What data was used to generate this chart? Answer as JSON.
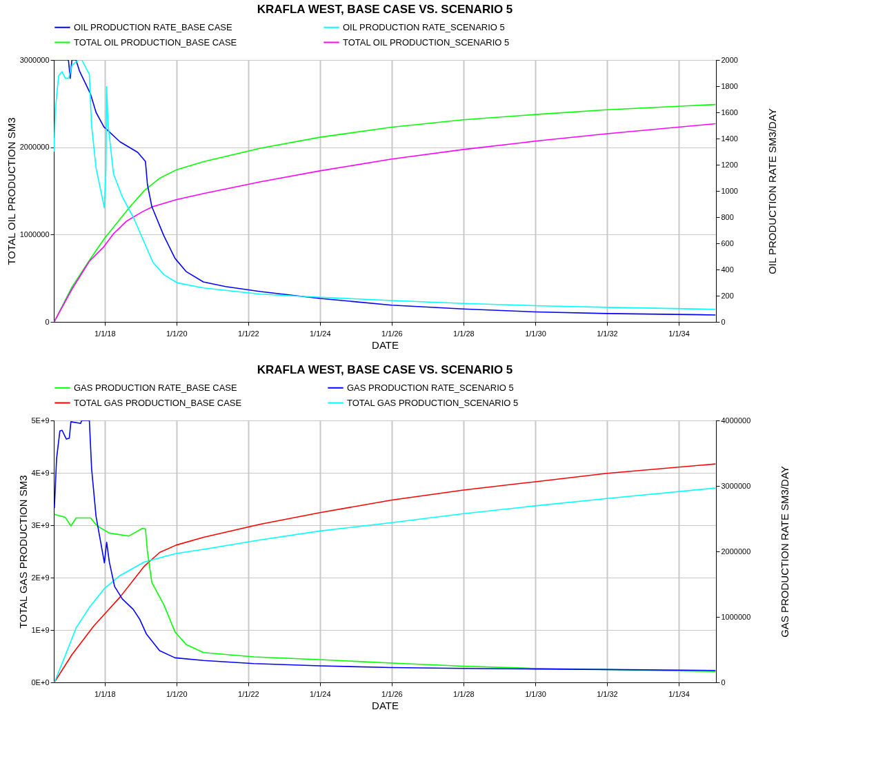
{
  "chart_data": [
    {
      "type": "line",
      "title": "KRAFLA WEST, BASE CASE VS. SCENARIO 5",
      "xlabel": "DATE",
      "ylabel": "TOTAL OIL PRODUCTION  SM3",
      "y2label": "OIL PRODUCTION RATE  SM3/DAY",
      "xlim": [
        "2016-08-01",
        "2035-01-15"
      ],
      "xticks": [
        {
          "value": "2018-01-01",
          "label": "1/1/18"
        },
        {
          "value": "2020-01-01",
          "label": "1/1/20"
        },
        {
          "value": "2022-01-01",
          "label": "1/1/22"
        },
        {
          "value": "2024-01-01",
          "label": "1/1/24"
        },
        {
          "value": "2026-01-01",
          "label": "1/1/26"
        },
        {
          "value": "2028-01-01",
          "label": "1/1/28"
        },
        {
          "value": "2030-01-01",
          "label": "1/1/30"
        },
        {
          "value": "2032-01-01",
          "label": "1/1/32"
        },
        {
          "value": "2034-01-01",
          "label": "1/1/34"
        }
      ],
      "ylim": [
        0,
        3000000
      ],
      "yticks": [
        0,
        1000000,
        2000000,
        3000000
      ],
      "y2lim": [
        0,
        2000
      ],
      "y2ticks": [
        0,
        200,
        400,
        600,
        800,
        1000,
        1200,
        1400,
        1600,
        1800,
        2000
      ],
      "grid": true,
      "legend": "top",
      "series": [
        {
          "name": "OIL PRODUCTION RATE_BASE CASE",
          "color": "#0000ff",
          "axis": "y2",
          "x": [
            "2016-08-01",
            "2016-12-28",
            "2017-01-15",
            "2017-02-01",
            "2017-03-15",
            "2017-04-20",
            "2017-08-10",
            "2017-10-05",
            "2017-12-23",
            "2018-06-06",
            "2018-12-03",
            "2019-02-20",
            "2019-03-12",
            "2019-04-26",
            "2019-08-25",
            "2019-12-18",
            "2020-04-08",
            "2020-10-01",
            "2021-05-15",
            "2022-05-06",
            "2024-01-01",
            "2026-01-01",
            "2028-01-01",
            "2030-01-01",
            "2032-01-01",
            "2035-01-10"
          ],
          "values": [
            2000,
            2000,
            1860,
            2000,
            2000,
            1915,
            1740,
            1600,
            1490,
            1375,
            1295,
            1225,
            1050,
            880,
            660,
            485,
            385,
            305,
            270,
            232,
            179,
            128,
            99,
            76,
            64,
            53
          ]
        },
        {
          "name": "OIL PRODUCTION RATE_SCENARIO 5",
          "color": "#00ffff",
          "axis": "y2",
          "x": [
            "2016-08-03",
            "2016-08-17",
            "2016-09-20",
            "2016-10-24",
            "2016-11-27",
            "2016-12-30",
            "2017-02-03",
            "2017-04-10",
            "2017-05-13",
            "2017-07-29",
            "2017-08-20",
            "2017-10-05",
            "2017-12-29",
            "2018-01-14",
            "2018-01-20",
            "2018-02-05",
            "2018-04-01",
            "2018-06-29",
            "2018-10-19",
            "2019-01-17",
            "2019-05-07",
            "2019-08-28",
            "2020-01-10",
            "2020-10-04",
            "2022-05-06",
            "2024-01-01",
            "2026-01-01",
            "2028-01-01",
            "2030-01-01",
            "2032-01-01",
            "2035-01-10"
          ],
          "values": [
            1300,
            1630,
            1880,
            1910,
            1860,
            1860,
            1960,
            2000,
            2000,
            1890,
            1505,
            1175,
            870,
            1175,
            1795,
            1505,
            1130,
            955,
            800,
            645,
            455,
            360,
            298,
            259,
            212,
            188,
            163,
            141,
            124,
            111,
            96
          ]
        },
        {
          "name": "TOTAL OIL PRODUCTION_BASE CASE",
          "color": "#00ff00",
          "x": [
            "2016-08-05",
            "2017-02-02",
            "2017-07-29",
            "2017-12-29",
            "2018-04-23",
            "2018-09-05",
            "2019-02-09",
            "2019-07-14",
            "2019-12-29",
            "2020-10-04",
            "2022-05-06",
            "2024-01-01",
            "2026-01-01",
            "2028-01-01",
            "2030-01-01",
            "2032-01-01",
            "2035-01-10"
          ],
          "values": [
            0,
            400000,
            705000,
            955000,
            1115000,
            1305000,
            1505000,
            1645000,
            1740000,
            1835000,
            1990000,
            2115000,
            2230000,
            2315000,
            2375000,
            2430000,
            2490000
          ]
        },
        {
          "name": "TOTAL OIL PRODUCTION_SCENARIO 5",
          "color": "#ff00ff",
          "x": [
            "2016-08-05",
            "2017-02-02",
            "2017-07-29",
            "2017-12-23",
            "2018-04-01",
            "2018-08-13",
            "2019-01-17",
            "2019-05-07",
            "2019-12-29",
            "2020-10-04",
            "2022-05-06",
            "2024-01-01",
            "2026-01-01",
            "2028-01-01",
            "2030-01-01",
            "2032-01-01",
            "2035-01-10"
          ],
          "values": [
            0,
            375000,
            695000,
            860000,
            1010000,
            1155000,
            1260000,
            1320000,
            1400000,
            1470000,
            1605000,
            1730000,
            1865000,
            1975000,
            2070000,
            2155000,
            2270000
          ]
        }
      ]
    },
    {
      "type": "line",
      "title": "KRAFLA WEST, BASE CASE VS. SCENARIO 5",
      "xlabel": "DATE",
      "ylabel": "TOTAL GAS PRODUCTION  SM3",
      "y2label": "GAS PRODUCTION RATE  SM3/DAY",
      "xlim": [
        "2016-08-01",
        "2035-01-15"
      ],
      "xticks": [
        {
          "value": "2018-01-01",
          "label": "1/1/18"
        },
        {
          "value": "2020-01-01",
          "label": "1/1/20"
        },
        {
          "value": "2022-01-01",
          "label": "1/1/22"
        },
        {
          "value": "2024-01-01",
          "label": "1/1/24"
        },
        {
          "value": "2026-01-01",
          "label": "1/1/26"
        },
        {
          "value": "2028-01-01",
          "label": "1/1/28"
        },
        {
          "value": "2030-01-01",
          "label": "1/1/30"
        },
        {
          "value": "2032-01-01",
          "label": "1/1/32"
        },
        {
          "value": "2034-01-01",
          "label": "1/1/34"
        }
      ],
      "ylim": [
        0,
        5000000000
      ],
      "yticks": [
        {
          "value": 0,
          "label": "0E+0"
        },
        {
          "value": 1000000000,
          "label": "1E+9"
        },
        {
          "value": 2000000000,
          "label": "2E+9"
        },
        {
          "value": 3000000000,
          "label": "3E+9"
        },
        {
          "value": 4000000000,
          "label": "4E+9"
        },
        {
          "value": 5000000000,
          "label": "5E+9"
        }
      ],
      "y2lim": [
        0,
        4000000
      ],
      "y2ticks": [
        0,
        1000000,
        2000000,
        3000000,
        4000000
      ],
      "grid": true,
      "legend": "top",
      "series": [
        {
          "name": "GAS PRODUCTION RATE_BASE CASE",
          "color": "#00ff00",
          "axis": "y2",
          "x": [
            "2016-08-07",
            "2016-11-26",
            "2017-01-22",
            "2017-03-16",
            "2017-08-10",
            "2017-10-16",
            "2018-02-17",
            "2018-09-05",
            "2019-01-17",
            "2019-02-20",
            "2019-03-12",
            "2019-04-26",
            "2019-08-28",
            "2019-12-18",
            "2020-04-08",
            "2020-10-04",
            "2022-03-01",
            "2024-01-01",
            "2026-01-01",
            "2028-01-01",
            "2030-01-01",
            "2032-01-01",
            "2035-01-10"
          ],
          "values": [
            2565000,
            2520000,
            2390000,
            2510000,
            2510000,
            2390000,
            2280000,
            2235000,
            2350000,
            2345000,
            2000000,
            1525000,
            1180000,
            770000,
            580000,
            455000,
            390000,
            347000,
            295000,
            248000,
            213000,
            196000,
            165000
          ]
        },
        {
          "name": "GAS PRODUCTION RATE_SCENARIO 5",
          "color": "#0000ff",
          "axis": "y2",
          "x": [
            "2016-08-07",
            "2016-08-29",
            "2016-10-02",
            "2016-10-24",
            "2016-12-07",
            "2017-01-06",
            "2017-01-22",
            "2017-05-01",
            "2017-05-12",
            "2017-07-29",
            "2017-08-21",
            "2017-10-05",
            "2017-12-29",
            "2018-01-21",
            "2018-02-17",
            "2018-04-12",
            "2018-06-29",
            "2018-10-19",
            "2018-12-25",
            "2019-03-01",
            "2019-07-14",
            "2019-12-18",
            "2020-10-04",
            "2022-03-01",
            "2024-01-01",
            "2026-01-01",
            "2028-01-01",
            "2030-01-01",
            "2032-01-01",
            "2035-01-10"
          ],
          "values": [
            2660000,
            3415000,
            3840000,
            3850000,
            3715000,
            3730000,
            3980000,
            3955000,
            4000000,
            4000000,
            3260000,
            2535000,
            1825000,
            2140000,
            1840000,
            1465000,
            1275000,
            1115000,
            960000,
            740000,
            485000,
            375000,
            334000,
            287000,
            252000,
            226000,
            213000,
            204000,
            196000,
            182000
          ]
        },
        {
          "name": "TOTAL GAS PRODUCTION_BASE CASE",
          "color": "#ff0000",
          "x": [
            "2016-08-07",
            "2017-02-02",
            "2017-09-13",
            "2017-12-29",
            "2018-06-07",
            "2019-02-09",
            "2019-07-14",
            "2019-12-29",
            "2020-10-04",
            "2022-05-06",
            "2024-01-01",
            "2026-01-01",
            "2028-01-01",
            "2030-01-01",
            "2032-01-01",
            "2035-01-10"
          ],
          "values": [
            0,
            530000000,
            1080000000,
            1300000000,
            1630000000,
            2220000000,
            2480000000,
            2620000000,
            2770000000,
            3020000000,
            3240000000,
            3480000000,
            3670000000,
            3830000000,
            3990000000,
            4170000000
          ]
        },
        {
          "name": "TOTAL GAS PRODUCTION_SCENARIO 5",
          "color": "#00ffff",
          "x": [
            "2016-08-07",
            "2016-11-04",
            "2017-03-16",
            "2017-07-29",
            "2017-12-29",
            "2018-06-07",
            "2019-02-09",
            "2019-12-29",
            "2020-10-04",
            "2022-05-06",
            "2024-01-01",
            "2026-01-01",
            "2028-01-01",
            "2030-01-01",
            "2032-01-01",
            "2035-01-10"
          ],
          "values": [
            0,
            410000000,
            1040000000,
            1430000000,
            1790000000,
            2040000000,
            2300000000,
            2460000000,
            2540000000,
            2720000000,
            2890000000,
            3050000000,
            3220000000,
            3370000000,
            3510000000,
            3710000000
          ]
        }
      ]
    }
  ]
}
